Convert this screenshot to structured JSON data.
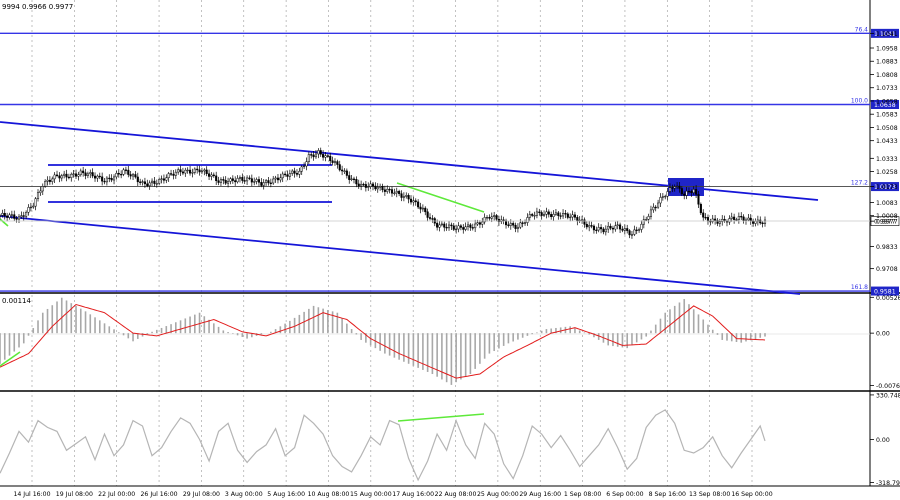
{
  "header": {
    "ohlc_text": "9994 0.9966 0.9977"
  },
  "chart_data": [
    {
      "type": "candlestick",
      "panel": "price",
      "ylim": [
        0.957,
        1.123
      ],
      "y_ticks": [
        "1.1208",
        "1.1041",
        "1.0958",
        "1.0883",
        "1.0808",
        "1.0733",
        "1.0658",
        "1.0583",
        "1.0508",
        "1.0433",
        "1.0333",
        "1.0258",
        "1.0173",
        "1.0083",
        "1.0008",
        "0.9977",
        "0.9833",
        "0.9708",
        "0.9581"
      ],
      "x_ticks": [
        "14 Jul 16:00",
        "19 Jul 08:00",
        "22 Jul 00:00",
        "26 Jul 16:00",
        "29 Jul 08:00",
        "3 Aug 00:00",
        "5 Aug 16:00",
        "10 Aug 08:00",
        "15 Aug 00:00",
        "17 Aug 16:00",
        "22 Aug 08:00",
        "25 Aug 00:00",
        "29 Aug 16:00",
        "1 Sep 08:00",
        "6 Sep 00:00",
        "8 Sep 16:00",
        "13 Sep 08:00",
        "16 Sep 00:00"
      ],
      "close_path": [
        {
          "i": 0,
          "y": 1.001
        },
        {
          "i": 8,
          "y": 0.999
        },
        {
          "i": 14,
          "y": 1.008
        },
        {
          "i": 18,
          "y": 1.018
        },
        {
          "i": 24,
          "y": 1.023
        },
        {
          "i": 34,
          "y": 1.025
        },
        {
          "i": 44,
          "y": 1.021
        },
        {
          "i": 52,
          "y": 1.026
        },
        {
          "i": 60,
          "y": 1.019
        },
        {
          "i": 68,
          "y": 1.021
        },
        {
          "i": 76,
          "y": 1.026
        },
        {
          "i": 84,
          "y": 1.027
        },
        {
          "i": 92,
          "y": 1.02
        },
        {
          "i": 100,
          "y": 1.022
        },
        {
          "i": 110,
          "y": 1.019
        },
        {
          "i": 118,
          "y": 1.023
        },
        {
          "i": 126,
          "y": 1.025
        },
        {
          "i": 130,
          "y": 1.035
        },
        {
          "i": 134,
          "y": 1.037
        },
        {
          "i": 140,
          "y": 1.031
        },
        {
          "i": 146,
          "y": 1.024
        },
        {
          "i": 152,
          "y": 1.018
        },
        {
          "i": 160,
          "y": 1.016
        },
        {
          "i": 166,
          "y": 1.015
        },
        {
          "i": 172,
          "y": 1.01
        },
        {
          "i": 178,
          "y": 1.004
        },
        {
          "i": 184,
          "y": 0.996
        },
        {
          "i": 192,
          "y": 0.993
        },
        {
          "i": 200,
          "y": 0.996
        },
        {
          "i": 206,
          "y": 1.0
        },
        {
          "i": 212,
          "y": 0.997
        },
        {
          "i": 218,
          "y": 0.995
        },
        {
          "i": 224,
          "y": 1.001
        },
        {
          "i": 230,
          "y": 1.002
        },
        {
          "i": 236,
          "y": 1.002
        },
        {
          "i": 242,
          "y": 0.999
        },
        {
          "i": 248,
          "y": 0.995
        },
        {
          "i": 254,
          "y": 0.993
        },
        {
          "i": 260,
          "y": 0.994
        },
        {
          "i": 266,
          "y": 0.991
        },
        {
          "i": 270,
          "y": 0.996
        },
        {
          "i": 276,
          "y": 1.006
        },
        {
          "i": 280,
          "y": 1.013
        },
        {
          "i": 284,
          "y": 1.019
        },
        {
          "i": 288,
          "y": 1.013
        },
        {
          "i": 292,
          "y": 1.015
        },
        {
          "i": 296,
          "y": 0.999
        },
        {
          "i": 304,
          "y": 0.998
        },
        {
          "i": 312,
          "y": 0.999
        },
        {
          "i": 318,
          "y": 0.998
        },
        {
          "i": 322,
          "y": 0.9977
        }
      ],
      "levels": [
        {
          "label": "76.4",
          "value": 1.1041,
          "tag": "1.1041"
        },
        {
          "label": "100.0",
          "value": 1.0638,
          "tag": "1.0638"
        },
        {
          "label": "127.2",
          "value": 1.0173,
          "tag": "1.0173"
        },
        {
          "label": "161.8",
          "value": 0.9581,
          "tag": "0.9581"
        }
      ],
      "current_price": "0.9977"
    },
    {
      "type": "bar",
      "panel": "oscillator",
      "label": "0.00114",
      "ylim": [
        -0.0082,
        0.0056
      ],
      "y_ticks": [
        "0.00526",
        "0.00",
        "-0.00769"
      ],
      "histogram_path": [
        {
          "i": 0,
          "y": -0.0045
        },
        {
          "i": 10,
          "y": -0.0015
        },
        {
          "i": 18,
          "y": 0.003
        },
        {
          "i": 26,
          "y": 0.0052
        },
        {
          "i": 36,
          "y": 0.0032
        },
        {
          "i": 46,
          "y": 0.001
        },
        {
          "i": 56,
          "y": -0.0012
        },
        {
          "i": 64,
          "y": 0.0002
        },
        {
          "i": 74,
          "y": 0.0016
        },
        {
          "i": 84,
          "y": 0.003
        },
        {
          "i": 94,
          "y": 0.0004
        },
        {
          "i": 104,
          "y": -0.0008
        },
        {
          "i": 114,
          "y": 0.0002
        },
        {
          "i": 122,
          "y": 0.0018
        },
        {
          "i": 132,
          "y": 0.004
        },
        {
          "i": 142,
          "y": 0.003
        },
        {
          "i": 152,
          "y": -0.001
        },
        {
          "i": 162,
          "y": -0.003
        },
        {
          "i": 172,
          "y": -0.0045
        },
        {
          "i": 182,
          "y": -0.006
        },
        {
          "i": 190,
          "y": -0.0076
        },
        {
          "i": 198,
          "y": -0.006
        },
        {
          "i": 206,
          "y": -0.003
        },
        {
          "i": 214,
          "y": -0.0015
        },
        {
          "i": 222,
          "y": -0.0004
        },
        {
          "i": 230,
          "y": 0.0006
        },
        {
          "i": 240,
          "y": 0.001
        },
        {
          "i": 248,
          "y": -0.0002
        },
        {
          "i": 256,
          "y": -0.0018
        },
        {
          "i": 264,
          "y": -0.0022
        },
        {
          "i": 272,
          "y": -0.0005
        },
        {
          "i": 280,
          "y": 0.003
        },
        {
          "i": 288,
          "y": 0.005
        },
        {
          "i": 296,
          "y": 0.002
        },
        {
          "i": 304,
          "y": -0.001
        },
        {
          "i": 312,
          "y": -0.0014
        },
        {
          "i": 322,
          "y": -0.0005
        }
      ],
      "signal_path": [
        {
          "i": 0,
          "y": -0.005
        },
        {
          "i": 12,
          "y": -0.003
        },
        {
          "i": 22,
          "y": 0.001
        },
        {
          "i": 32,
          "y": 0.0042
        },
        {
          "i": 44,
          "y": 0.003
        },
        {
          "i": 56,
          "y": 0.0
        },
        {
          "i": 66,
          "y": -0.0004
        },
        {
          "i": 78,
          "y": 0.0008
        },
        {
          "i": 90,
          "y": 0.002
        },
        {
          "i": 102,
          "y": 0.0002
        },
        {
          "i": 112,
          "y": -0.0004
        },
        {
          "i": 124,
          "y": 0.001
        },
        {
          "i": 136,
          "y": 0.003
        },
        {
          "i": 146,
          "y": 0.002
        },
        {
          "i": 156,
          "y": -0.0008
        },
        {
          "i": 168,
          "y": -0.003
        },
        {
          "i": 180,
          "y": -0.0048
        },
        {
          "i": 192,
          "y": -0.0066
        },
        {
          "i": 202,
          "y": -0.006
        },
        {
          "i": 212,
          "y": -0.0035
        },
        {
          "i": 222,
          "y": -0.0018
        },
        {
          "i": 232,
          "y": 0.0
        },
        {
          "i": 242,
          "y": 0.0008
        },
        {
          "i": 252,
          "y": -0.0004
        },
        {
          "i": 262,
          "y": -0.0018
        },
        {
          "i": 272,
          "y": -0.0016
        },
        {
          "i": 282,
          "y": 0.0012
        },
        {
          "i": 292,
          "y": 0.004
        },
        {
          "i": 300,
          "y": 0.0025
        },
        {
          "i": 310,
          "y": -0.0008
        },
        {
          "i": 322,
          "y": -0.001
        }
      ]
    },
    {
      "type": "line",
      "panel": "cci",
      "ylim": [
        -330,
        345
      ],
      "y_ticks": [
        "330.7482",
        "0.00",
        "-318.798"
      ],
      "values_path": [
        {
          "i": 0,
          "y": -250
        },
        {
          "i": 4,
          "y": -100
        },
        {
          "i": 8,
          "y": 60
        },
        {
          "i": 12,
          "y": -20
        },
        {
          "i": 16,
          "y": 140
        },
        {
          "i": 20,
          "y": 90
        },
        {
          "i": 24,
          "y": 60
        },
        {
          "i": 28,
          "y": -80
        },
        {
          "i": 32,
          "y": -30
        },
        {
          "i": 36,
          "y": 20
        },
        {
          "i": 40,
          "y": -150
        },
        {
          "i": 44,
          "y": 40
        },
        {
          "i": 48,
          "y": -120
        },
        {
          "i": 52,
          "y": -40
        },
        {
          "i": 56,
          "y": 140
        },
        {
          "i": 60,
          "y": 100
        },
        {
          "i": 64,
          "y": -120
        },
        {
          "i": 68,
          "y": -60
        },
        {
          "i": 72,
          "y": 60
        },
        {
          "i": 76,
          "y": 160
        },
        {
          "i": 80,
          "y": 120
        },
        {
          "i": 84,
          "y": 0
        },
        {
          "i": 88,
          "y": -160
        },
        {
          "i": 92,
          "y": 60
        },
        {
          "i": 96,
          "y": 120
        },
        {
          "i": 100,
          "y": -80
        },
        {
          "i": 104,
          "y": -170
        },
        {
          "i": 108,
          "y": -90
        },
        {
          "i": 112,
          "y": -40
        },
        {
          "i": 116,
          "y": 80
        },
        {
          "i": 120,
          "y": -120
        },
        {
          "i": 124,
          "y": -60
        },
        {
          "i": 128,
          "y": 180
        },
        {
          "i": 132,
          "y": 120
        },
        {
          "i": 136,
          "y": 40
        },
        {
          "i": 140,
          "y": -120
        },
        {
          "i": 144,
          "y": -200
        },
        {
          "i": 148,
          "y": -240
        },
        {
          "i": 152,
          "y": -120
        },
        {
          "i": 156,
          "y": 20
        },
        {
          "i": 160,
          "y": -40
        },
        {
          "i": 164,
          "y": 140
        },
        {
          "i": 168,
          "y": 110
        },
        {
          "i": 172,
          "y": -140
        },
        {
          "i": 176,
          "y": -300
        },
        {
          "i": 180,
          "y": -160
        },
        {
          "i": 184,
          "y": 40
        },
        {
          "i": 188,
          "y": -80
        },
        {
          "i": 192,
          "y": 140
        },
        {
          "i": 196,
          "y": -40
        },
        {
          "i": 200,
          "y": -140
        },
        {
          "i": 204,
          "y": 120
        },
        {
          "i": 208,
          "y": 40
        },
        {
          "i": 212,
          "y": -180
        },
        {
          "i": 216,
          "y": -290
        },
        {
          "i": 220,
          "y": -120
        },
        {
          "i": 224,
          "y": 100
        },
        {
          "i": 228,
          "y": 40
        },
        {
          "i": 232,
          "y": -60
        },
        {
          "i": 236,
          "y": 30
        },
        {
          "i": 240,
          "y": -80
        },
        {
          "i": 244,
          "y": -200
        },
        {
          "i": 248,
          "y": -120
        },
        {
          "i": 252,
          "y": -40
        },
        {
          "i": 256,
          "y": 80
        },
        {
          "i": 260,
          "y": -60
        },
        {
          "i": 264,
          "y": -220
        },
        {
          "i": 268,
          "y": -140
        },
        {
          "i": 272,
          "y": 90
        },
        {
          "i": 276,
          "y": 180
        },
        {
          "i": 280,
          "y": 220
        },
        {
          "i": 284,
          "y": 120
        },
        {
          "i": 288,
          "y": -80
        },
        {
          "i": 292,
          "y": -100
        },
        {
          "i": 296,
          "y": -60
        },
        {
          "i": 300,
          "y": 20
        },
        {
          "i": 304,
          "y": -120
        },
        {
          "i": 308,
          "y": -210
        },
        {
          "i": 312,
          "y": -100
        },
        {
          "i": 316,
          "y": 0
        },
        {
          "i": 320,
          "y": 100
        },
        {
          "i": 322,
          "y": -10
        }
      ]
    }
  ],
  "colors": {
    "candle": "#000000",
    "trend_line": "#1515d8",
    "horizontal_level": "#3535e6",
    "divergence": "#5ee93a",
    "signal": "#e21d1d",
    "histogram": "#a8a8a8",
    "cci_line": "#b5b5b5",
    "zone_box": "#1f25c8"
  }
}
